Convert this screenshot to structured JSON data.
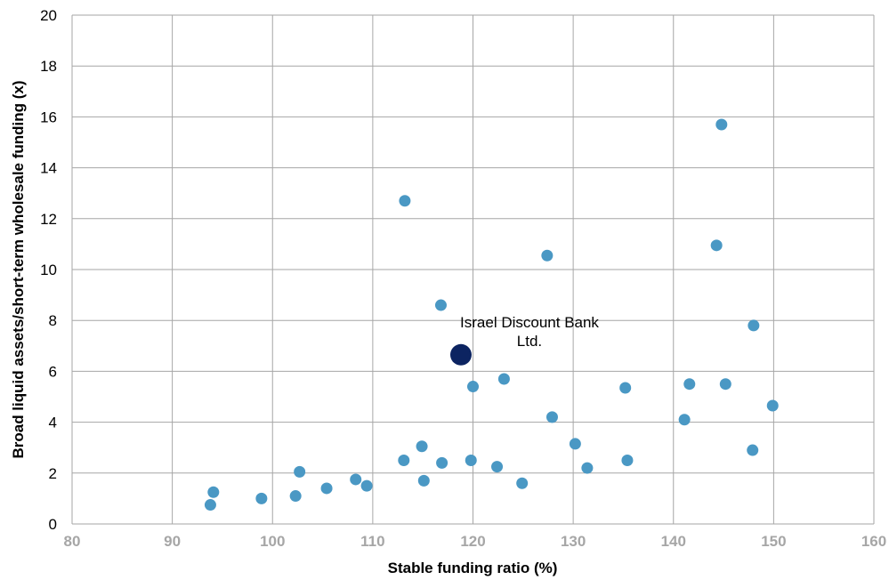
{
  "chart_data": {
    "type": "scatter",
    "xlabel": "Stable funding ratio (%)",
    "ylabel": "Broad liquid assets/short-term wholesale funding (x)",
    "xlim": [
      80,
      160
    ],
    "ylim": [
      0,
      20
    ],
    "x_ticks": [
      "80",
      "90",
      "100",
      "110",
      "120",
      "130",
      "140",
      "150",
      "160"
    ],
    "y_ticks": [
      "0",
      "2",
      "4",
      "6",
      "8",
      "10",
      "12",
      "14",
      "16",
      "18",
      "20"
    ],
    "grid": true,
    "colors": {
      "peers": "#4a98c4",
      "highlight": "#0c2461",
      "grid": "#a6a6a6",
      "x_tick_text": "#a6a6a6"
    },
    "series": [
      {
        "points": [
          {
            "x": 93.8,
            "y": 0.75
          },
          {
            "x": 94.1,
            "y": 1.25
          },
          {
            "x": 98.9,
            "y": 1.0
          },
          {
            "x": 102.3,
            "y": 1.1
          },
          {
            "x": 102.7,
            "y": 2.05
          },
          {
            "x": 105.4,
            "y": 1.4
          },
          {
            "x": 108.3,
            "y": 1.75
          },
          {
            "x": 109.4,
            "y": 1.5
          },
          {
            "x": 113.1,
            "y": 2.5
          },
          {
            "x": 113.2,
            "y": 12.7
          },
          {
            "x": 114.9,
            "y": 3.05
          },
          {
            "x": 115.1,
            "y": 1.7
          },
          {
            "x": 116.8,
            "y": 8.6
          },
          {
            "x": 116.9,
            "y": 2.4
          },
          {
            "x": 119.8,
            "y": 2.5
          },
          {
            "x": 120.0,
            "y": 5.4
          },
          {
            "x": 122.4,
            "y": 2.25
          },
          {
            "x": 123.1,
            "y": 5.7
          },
          {
            "x": 124.9,
            "y": 1.6
          },
          {
            "x": 127.4,
            "y": 10.55
          },
          {
            "x": 127.9,
            "y": 4.2
          },
          {
            "x": 130.2,
            "y": 3.15
          },
          {
            "x": 131.4,
            "y": 2.2
          },
          {
            "x": 135.2,
            "y": 5.35
          },
          {
            "x": 135.4,
            "y": 2.5
          },
          {
            "x": 141.1,
            "y": 4.1
          },
          {
            "x": 141.6,
            "y": 5.5
          },
          {
            "x": 144.3,
            "y": 10.95
          },
          {
            "x": 144.8,
            "y": 15.7
          },
          {
            "x": 145.2,
            "y": 5.5
          },
          {
            "x": 147.9,
            "y": 2.9
          },
          {
            "x": 148.0,
            "y": 7.8
          },
          {
            "x": 149.9,
            "y": 4.65
          }
        ]
      },
      {
        "points": [
          {
            "x": 118.8,
            "y": 6.65
          }
        ],
        "annotation": [
          "Israel Discount Bank",
          "Ltd."
        ]
      }
    ]
  }
}
